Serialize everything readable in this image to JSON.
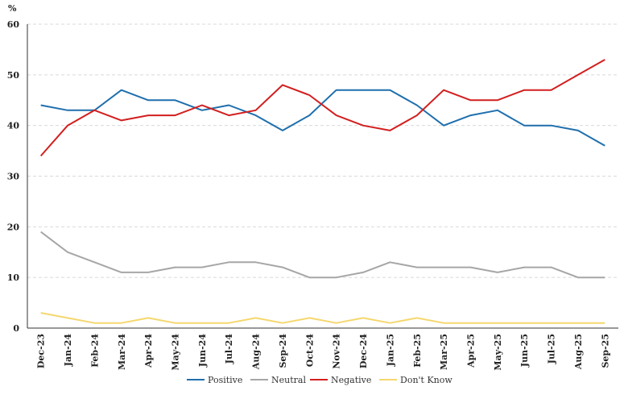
{
  "chart_data": {
    "type": "line",
    "ylabel": "%",
    "ylim": [
      0,
      60
    ],
    "yticks": [
      0,
      10,
      20,
      30,
      40,
      50,
      60
    ],
    "grid": true,
    "legend": "bottom",
    "categories": [
      "Dec-23",
      "Jan-24",
      "Feb-24",
      "Mar-24",
      "Apr-24",
      "May-24",
      "Jun-24",
      "Jul-24",
      "Aug-24",
      "Sep-24",
      "Oct-24",
      "Nov-24",
      "Dec-24",
      "Jan-25",
      "Feb-25",
      "Mar-25",
      "Apr-25",
      "May-25",
      "Jun-25",
      "Jul-25",
      "Aug-25",
      "Sep-25"
    ],
    "series": [
      {
        "name": "Positive",
        "color": "#1f6fad",
        "values": [
          44,
          43,
          43,
          47,
          45,
          45,
          43,
          44,
          42,
          39,
          42,
          47,
          47,
          47,
          44,
          40,
          42,
          43,
          40,
          40,
          39,
          36
        ]
      },
      {
        "name": "Neutral",
        "color": "#a6a6a6",
        "values": [
          19,
          15,
          13,
          11,
          11,
          12,
          12,
          13,
          13,
          12,
          10,
          10,
          11,
          13,
          12,
          12,
          12,
          11,
          12,
          12,
          10,
          10
        ]
      },
      {
        "name": "Negative",
        "color": "#d21f1f",
        "values": [
          34,
          40,
          43,
          41,
          42,
          42,
          44,
          42,
          43,
          48,
          46,
          42,
          40,
          39,
          42,
          47,
          45,
          45,
          47,
          47,
          50,
          53
        ]
      },
      {
        "name": "Don't Know",
        "color": "#f5d76e",
        "values": [
          3,
          2,
          1,
          1,
          2,
          1,
          1,
          1,
          2,
          1,
          2,
          1,
          2,
          1,
          2,
          1,
          1,
          1,
          1,
          1,
          1,
          1
        ]
      }
    ]
  }
}
